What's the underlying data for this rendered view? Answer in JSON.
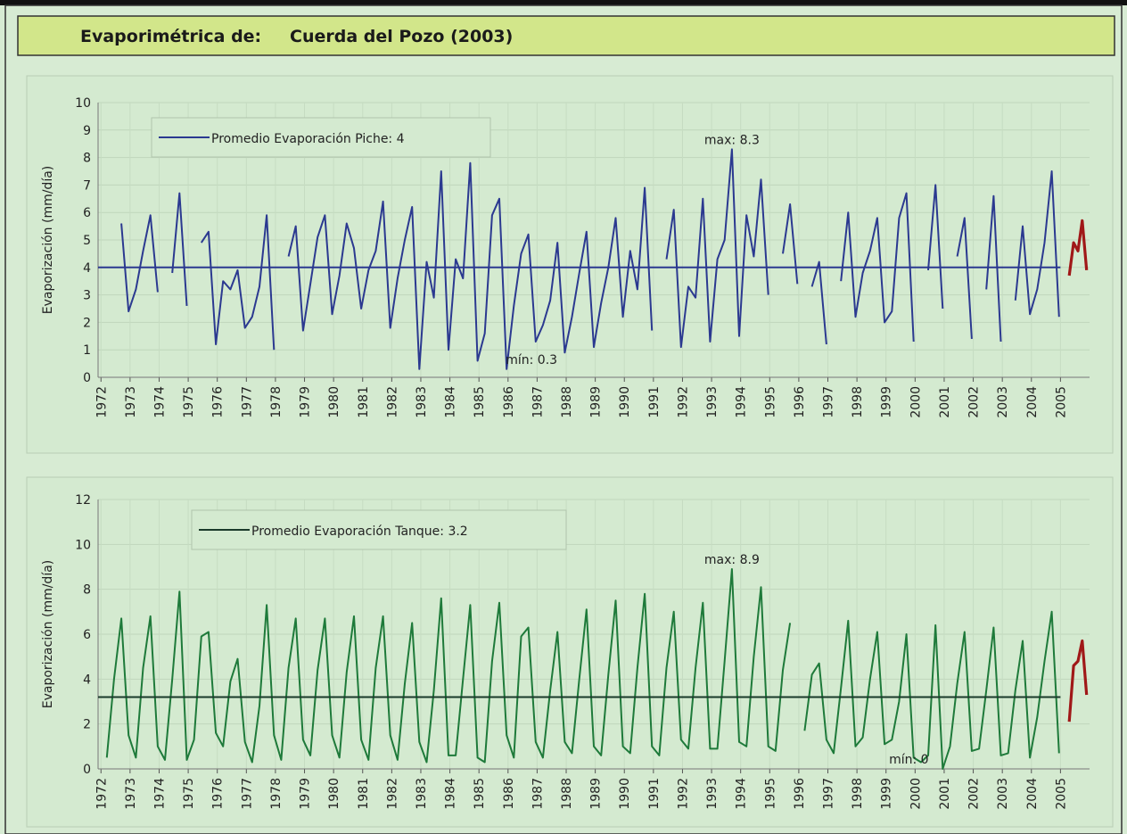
{
  "header": {
    "label": "Evaporimétrica de:",
    "station": "Cuerda del Pozo (2003)"
  },
  "chart_data": [
    {
      "type": "line",
      "y_label": "Evaporización (mm/día)",
      "xlim": [
        1971.9,
        2006.0
      ],
      "xticks": [
        1972,
        1973,
        1974,
        1975,
        1976,
        1977,
        1978,
        1979,
        1980,
        1981,
        1982,
        1983,
        1984,
        1985,
        1986,
        1987,
        1988,
        1989,
        1990,
        1991,
        1992,
        1993,
        1994,
        1995,
        1996,
        1997,
        1998,
        1999,
        2000,
        2001,
        2002,
        2003,
        2004,
        2005
      ],
      "ylim": [
        0,
        10
      ],
      "yticks": [
        0,
        1,
        2,
        3,
        4,
        5,
        6,
        7,
        8,
        9,
        10
      ],
      "grid": true,
      "mean": {
        "name": "Promedio Evaporación Piche: 4",
        "value": 4,
        "color": "#2b3990",
        "label_color": "#2a78c0"
      },
      "annotations": [
        {
          "text": "max: 8.3",
          "x": 1993.7,
          "y": 8.3
        },
        {
          "text": "mín: 0.3",
          "x": 1985.95,
          "y": 0.3
        }
      ],
      "series": [
        {
          "color": "#2b3990",
          "x": [
            1972.2,
            1972.45,
            1972.7,
            1972.95,
            1973.2,
            1973.45,
            1973.7,
            1973.95,
            1974.2,
            1974.45,
            1974.7,
            1974.95,
            1975.2,
            1975.45,
            1975.7,
            1975.95,
            1976.2,
            1976.45,
            1976.7,
            1976.95,
            1977.2,
            1977.45,
            1977.7,
            1977.95,
            1978.2,
            1978.45,
            1978.7,
            1978.95,
            1979.2,
            1979.45,
            1979.7,
            1979.95,
            1980.2,
            1980.45,
            1980.7,
            1980.95,
            1981.2,
            1981.45,
            1981.7,
            1981.95,
            1982.2,
            1982.45,
            1982.7,
            1982.95,
            1983.2,
            1983.45,
            1983.7,
            1983.95,
            1984.2,
            1984.45,
            1984.7,
            1984.95,
            1985.2,
            1985.45,
            1985.7,
            1985.95,
            1986.2,
            1986.45,
            1986.7,
            1986.95,
            1987.2,
            1987.45,
            1987.7,
            1987.95,
            1988.2,
            1988.45,
            1988.7,
            1988.95,
            1989.2,
            1989.45,
            1989.7,
            1989.95,
            1990.2,
            1990.45,
            1990.7,
            1990.95,
            1991.2,
            1991.45,
            1991.7,
            1991.95,
            1992.2,
            1992.45,
            1992.7,
            1992.95,
            1993.2,
            1993.45,
            1993.7,
            1993.95,
            1994.2,
            1994.45,
            1994.7,
            1994.95,
            1995.2,
            1995.45,
            1995.7,
            1995.95,
            1996.2,
            1996.45,
            1996.7,
            1996.95,
            1997.2,
            1997.45,
            1997.7,
            1997.95,
            1998.2,
            1998.45,
            1998.7,
            1998.95,
            1999.2,
            1999.45,
            1999.7,
            1999.95,
            2000.2,
            2000.45,
            2000.7,
            2000.95,
            2001.2,
            2001.45,
            2001.7,
            2001.95,
            2002.2,
            2002.45,
            2002.7,
            2002.95,
            2003.2,
            2003.45,
            2003.7,
            2003.95,
            2004.2,
            2004.45,
            2004.7,
            2004.95
          ],
          "values": [
            2.1,
            null,
            5.6,
            2.4,
            3.2,
            4.6,
            5.9,
            3.1,
            null,
            3.8,
            6.7,
            2.6,
            null,
            4.9,
            5.3,
            1.2,
            3.5,
            3.2,
            3.9,
            1.8,
            2.2,
            3.3,
            5.9,
            1.0,
            null,
            4.4,
            5.5,
            1.7,
            3.4,
            5.1,
            5.9,
            2.3,
            3.7,
            5.6,
            4.7,
            2.5,
            3.9,
            4.6,
            6.4,
            1.8,
            3.6,
            5.0,
            6.2,
            0.3,
            4.2,
            2.9,
            7.5,
            1.0,
            4.3,
            3.6,
            7.8,
            0.6,
            1.6,
            5.9,
            6.5,
            0.3,
            2.6,
            4.5,
            5.2,
            1.3,
            1.9,
            2.8,
            4.9,
            0.9,
            2.2,
            3.8,
            5.3,
            1.1,
            2.7,
            4.0,
            5.8,
            2.2,
            4.6,
            3.2,
            6.9,
            1.7,
            null,
            4.3,
            6.1,
            1.1,
            3.3,
            2.9,
            6.5,
            1.3,
            4.3,
            5.0,
            8.3,
            1.5,
            5.9,
            4.4,
            7.2,
            3.0,
            null,
            4.5,
            6.3,
            3.4,
            null,
            3.3,
            4.2,
            1.2,
            null,
            3.5,
            6.0,
            2.2,
            3.8,
            4.6,
            5.8,
            2.0,
            2.4,
            5.8,
            6.7,
            1.3,
            null,
            3.9,
            7.0,
            2.5,
            null,
            4.4,
            5.8,
            1.4,
            null,
            3.2,
            6.6,
            1.3,
            null,
            2.8,
            5.5,
            2.3,
            3.2,
            4.9,
            7.5,
            2.2
          ]
        },
        {
          "color": "#a01818",
          "x": [
            2005.3,
            2005.45,
            2005.6,
            2005.75,
            2005.9
          ],
          "values": [
            3.7,
            4.9,
            4.6,
            5.7,
            3.9
          ]
        }
      ]
    },
    {
      "type": "line",
      "y_label": "Evaporización (mm/día)",
      "xlim": [
        1971.9,
        2006.0
      ],
      "xticks": [
        1972,
        1973,
        1974,
        1975,
        1976,
        1977,
        1978,
        1979,
        1980,
        1981,
        1982,
        1983,
        1984,
        1985,
        1986,
        1987,
        1988,
        1989,
        1990,
        1991,
        1992,
        1993,
        1994,
        1995,
        1996,
        1997,
        1998,
        1999,
        2000,
        2001,
        2002,
        2003,
        2004,
        2005
      ],
      "ylim": [
        0,
        12
      ],
      "yticks": [
        0,
        2,
        4,
        6,
        8,
        10,
        12
      ],
      "grid": true,
      "mean": {
        "name": "Promedio Evaporación Tanque: 3.2",
        "value": 3.2,
        "color": "#1a3a2a",
        "label_color": "#1a9a50"
      },
      "annotations": [
        {
          "text": "max: 8.9",
          "x": 1993.7,
          "y": 8.9
        },
        {
          "text": "mín: 0",
          "x": 2000.95,
          "y": 0
        }
      ],
      "series": [
        {
          "color": "#1e7a3a",
          "x": [
            1972.2,
            1972.45,
            1972.7,
            1972.95,
            1973.2,
            1973.45,
            1973.7,
            1973.95,
            1974.2,
            1974.45,
            1974.7,
            1974.95,
            1975.2,
            1975.45,
            1975.7,
            1975.95,
            1976.2,
            1976.45,
            1976.7,
            1976.95,
            1977.2,
            1977.45,
            1977.7,
            1977.95,
            1978.2,
            1978.45,
            1978.7,
            1978.95,
            1979.2,
            1979.45,
            1979.7,
            1979.95,
            1980.2,
            1980.45,
            1980.7,
            1980.95,
            1981.2,
            1981.45,
            1981.7,
            1981.95,
            1982.2,
            1982.45,
            1982.7,
            1982.95,
            1983.2,
            1983.45,
            1983.7,
            1983.95,
            1984.2,
            1984.45,
            1984.7,
            1984.95,
            1985.2,
            1985.45,
            1985.7,
            1985.95,
            1986.2,
            1986.45,
            1986.7,
            1986.95,
            1987.2,
            1987.45,
            1987.7,
            1987.95,
            1988.2,
            1988.45,
            1988.7,
            1988.95,
            1989.2,
            1989.45,
            1989.7,
            1989.95,
            1990.2,
            1990.45,
            1990.7,
            1990.95,
            1991.2,
            1991.45,
            1991.7,
            1991.95,
            1992.2,
            1992.45,
            1992.7,
            1992.95,
            1993.2,
            1993.45,
            1993.7,
            1993.95,
            1994.2,
            1994.45,
            1994.7,
            1994.95,
            1995.2,
            1995.45,
            1995.7,
            1995.95,
            1996.2,
            1996.45,
            1996.7,
            1996.95,
            1997.2,
            1997.45,
            1997.7,
            1997.95,
            1998.2,
            1998.45,
            1998.7,
            1998.95,
            1999.2,
            1999.45,
            1999.7,
            1999.95,
            2000.2,
            2000.45,
            2000.7,
            2000.95,
            2001.2,
            2001.45,
            2001.7,
            2001.95,
            2002.2,
            2002.45,
            2002.7,
            2002.95,
            2003.2,
            2003.45,
            2003.7,
            2003.95,
            2004.2,
            2004.45,
            2004.7,
            2004.95
          ],
          "values": [
            0.5,
            4.0,
            6.7,
            1.5,
            0.5,
            4.5,
            6.8,
            1.0,
            0.4,
            4.0,
            7.9,
            0.4,
            1.3,
            5.9,
            6.1,
            1.6,
            1.0,
            3.9,
            4.9,
            1.2,
            0.3,
            2.8,
            7.3,
            1.5,
            0.4,
            4.5,
            6.7,
            1.3,
            0.6,
            4.4,
            6.7,
            1.5,
            0.5,
            4.3,
            6.8,
            1.3,
            0.4,
            4.5,
            6.8,
            1.5,
            0.4,
            3.8,
            6.5,
            1.2,
            0.3,
            3.5,
            7.6,
            0.6,
            0.6,
            4.0,
            7.3,
            0.5,
            0.3,
            4.8,
            7.4,
            1.5,
            0.5,
            5.9,
            6.3,
            1.2,
            0.5,
            3.5,
            6.1,
            1.2,
            0.7,
            4.0,
            7.1,
            1.0,
            0.6,
            4.2,
            7.5,
            1.0,
            0.7,
            4.5,
            7.8,
            1.0,
            0.6,
            4.5,
            7.0,
            1.3,
            0.9,
            4.5,
            7.4,
            0.9,
            0.9,
            4.8,
            8.9,
            1.2,
            1.0,
            5.0,
            8.1,
            1.0,
            0.8,
            4.4,
            6.5,
            null,
            1.7,
            4.2,
            4.7,
            1.3,
            0.7,
            3.6,
            6.6,
            1.0,
            1.4,
            4.0,
            6.1,
            1.1,
            1.3,
            3.0,
            6.0,
            0.5,
            0.3,
            0.6,
            6.4,
            0.0,
            1.0,
            3.8,
            6.1,
            0.8,
            0.9,
            3.5,
            6.3,
            0.6,
            0.7,
            3.5,
            5.7,
            0.5,
            2.3,
            4.8,
            7.0,
            0.7
          ]
        },
        {
          "color": "#a01818",
          "x": [
            2005.3,
            2005.45,
            2005.6,
            2005.75,
            2005.9
          ],
          "values": [
            2.1,
            4.6,
            4.8,
            5.7,
            3.3
          ]
        }
      ]
    }
  ]
}
